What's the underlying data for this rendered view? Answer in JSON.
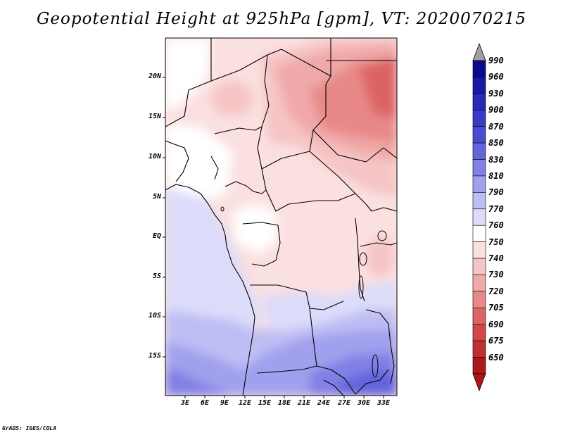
{
  "title": "Geopotential Height at 925hPa [gpm], VT: 2020070215",
  "footer": "GrADS: IGES/COLA",
  "map": {
    "lat_labels": [
      "20N",
      "15N",
      "10N",
      "5N",
      "EQ",
      "5S",
      "10S",
      "15S"
    ],
    "lon_labels": [
      "3E",
      "6E",
      "9E",
      "12E",
      "15E",
      "18E",
      "21E",
      "24E",
      "27E",
      "30E",
      "33E"
    ]
  },
  "colorbar": {
    "levels": [
      "990",
      "960",
      "930",
      "900",
      "870",
      "850",
      "830",
      "810",
      "790",
      "770",
      "760",
      "750",
      "740",
      "730",
      "720",
      "705",
      "690",
      "675",
      "650"
    ],
    "colors": [
      "#0a0a8c",
      "#1a1aa8",
      "#2a2ab8",
      "#3a3ac4",
      "#4b4bd0",
      "#6464dc",
      "#8080e6",
      "#a0a0ee",
      "#bebef4",
      "#dcdcfa",
      "#ffffff",
      "#fbe0e0",
      "#f6c4c4",
      "#f0a8a8",
      "#e88888",
      "#dc6464",
      "#d04848",
      "#c03030",
      "#aa1a1a"
    ],
    "top_arrow_color": "#a0a0a0",
    "bottom_arrow_color": "#b41414"
  }
}
